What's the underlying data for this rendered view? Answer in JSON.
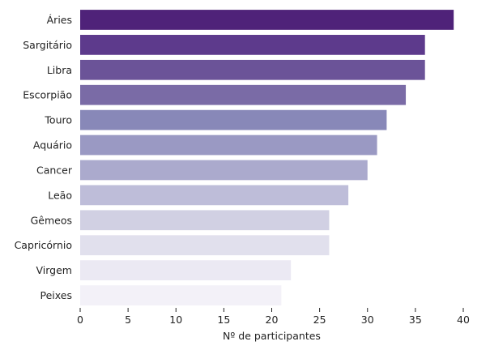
{
  "chart_data": {
    "type": "bar",
    "orientation": "horizontal",
    "categories": [
      "Áries",
      "Sargitário",
      "Libra",
      "Escorpião",
      "Touro",
      "Aquário",
      "Cancer",
      "Leão",
      "Gêmeos",
      "Capricórnio",
      "Virgem",
      "Peixes"
    ],
    "values": [
      39,
      36,
      36,
      34,
      32,
      31,
      30,
      28,
      26,
      26,
      22,
      21
    ],
    "colors": [
      "#4f2279",
      "#5d3a8c",
      "#6b5398",
      "#7a6ba6",
      "#8888b8",
      "#9a99c3",
      "#abaacd",
      "#bebdd9",
      "#d1d0e3",
      "#e1e0ed",
      "#ebe9f3",
      "#f3f1f8"
    ],
    "xlabel": "Nº de participantes",
    "ylabel": "",
    "xlim": [
      0,
      40
    ],
    "x_ticks": [
      0,
      5,
      10,
      15,
      20,
      25,
      30,
      35,
      40
    ],
    "grid": false,
    "legend": "none"
  }
}
